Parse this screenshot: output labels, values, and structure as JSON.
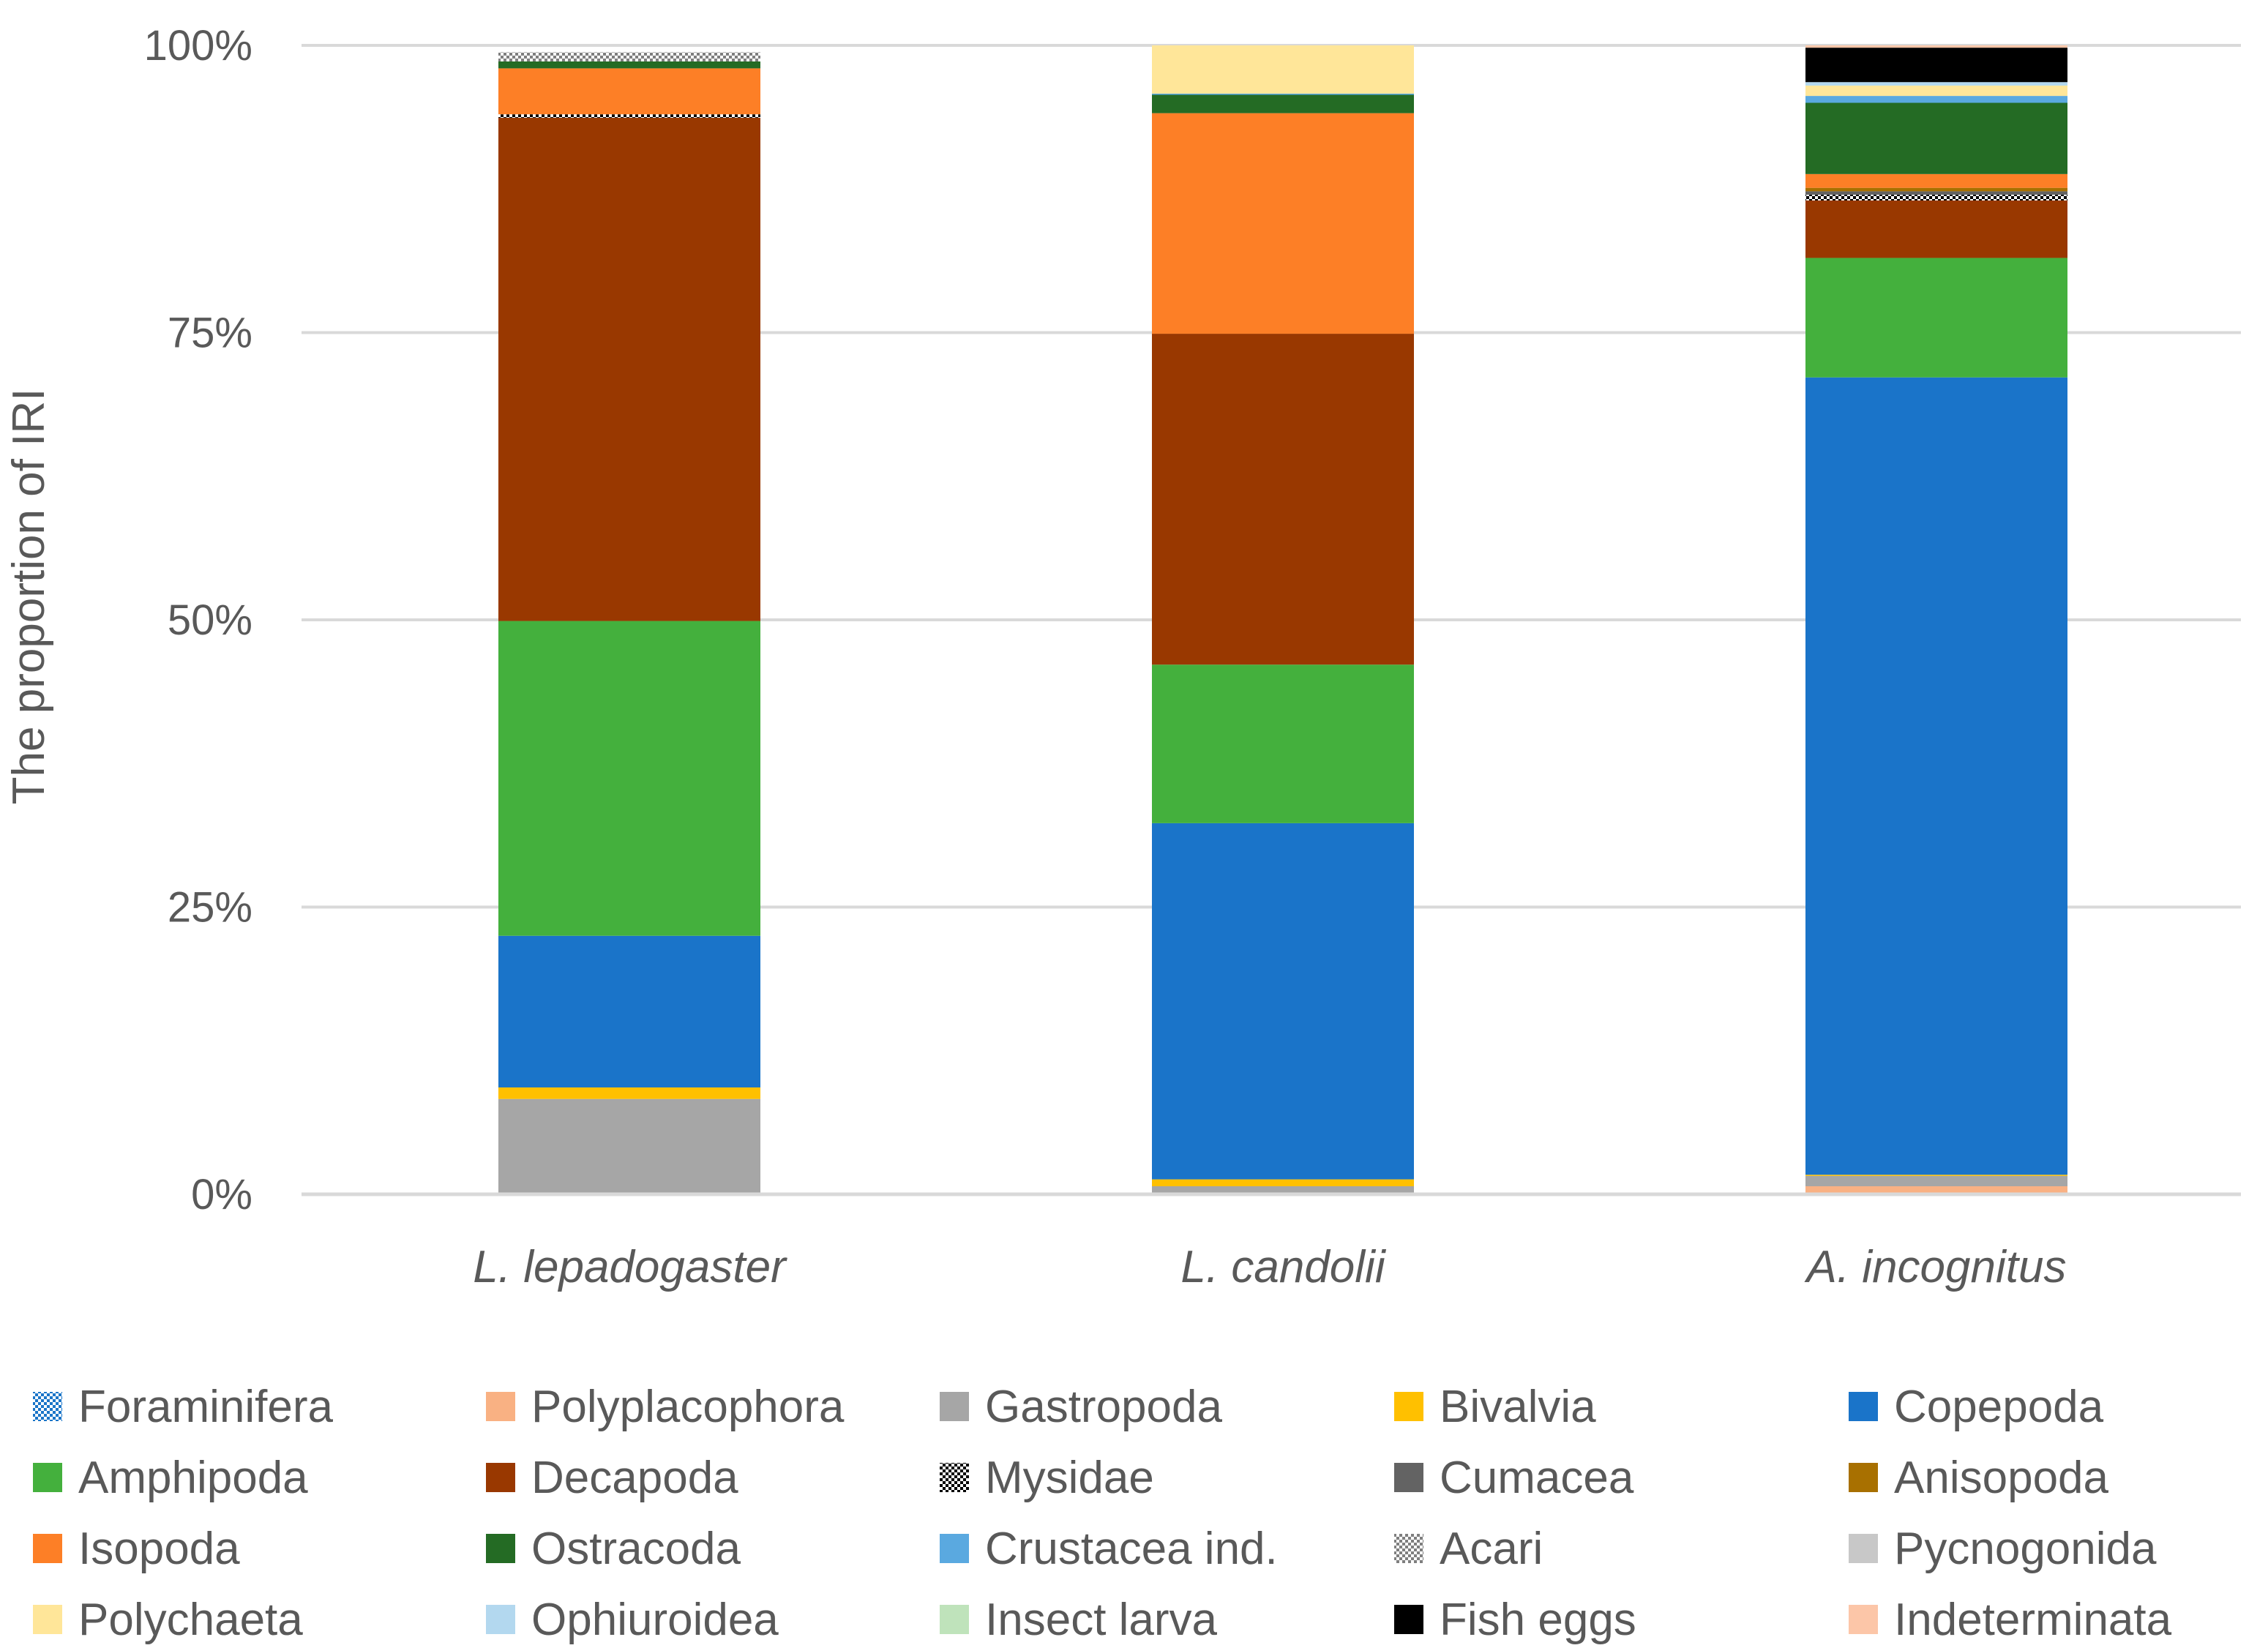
{
  "chart_data": {
    "type": "bar",
    "stacked": true,
    "percent": true,
    "title": "",
    "xlabel": "",
    "ylabel": "The proportion of IRI",
    "ylim": [
      0,
      100
    ],
    "yticks": [
      0,
      25,
      50,
      75,
      100
    ],
    "ytick_labels": [
      "0%",
      "25%",
      "50%",
      "75%",
      "100%"
    ],
    "grid": true,
    "legend_position": "bottom",
    "categories": [
      "L. lepadogaster",
      "L. candolii",
      "A. incognitus"
    ],
    "series": [
      {
        "name": "Foraminifera",
        "color": "#1b75c8",
        "pattern": "checker-blue",
        "values": [
          0.0,
          0.0,
          0.0
        ]
      },
      {
        "name": "Polyplacophora",
        "color": "#f9b183",
        "values": [
          0.0,
          0.0,
          0.7
        ]
      },
      {
        "name": "Gastropoda",
        "color": "#a6a6a6",
        "values": [
          8.3,
          0.7,
          0.9
        ]
      },
      {
        "name": "Bivalvia",
        "color": "#ffc000",
        "values": [
          1.0,
          0.6,
          0.1
        ]
      },
      {
        "name": "Copepoda",
        "color": "#1a74c9",
        "values": [
          13.2,
          31.0,
          69.4
        ]
      },
      {
        "name": "Amphipoda",
        "color": "#44b03d",
        "values": [
          27.4,
          13.8,
          10.4
        ]
      },
      {
        "name": "Decapoda",
        "color": "#993800",
        "values": [
          43.8,
          28.8,
          5.0
        ]
      },
      {
        "name": "Mysidae",
        "color": "#000000",
        "pattern": "checker-black",
        "values": [
          0.3,
          0.0,
          0.5
        ]
      },
      {
        "name": "Cumacea",
        "color": "#636363",
        "values": [
          0.0,
          0.0,
          0.3
        ]
      },
      {
        "name": "Anisopoda",
        "color": "#a87000",
        "values": [
          0.0,
          0.0,
          0.3
        ]
      },
      {
        "name": "Isopoda",
        "color": "#fd7f26",
        "values": [
          4.0,
          19.2,
          1.2
        ]
      },
      {
        "name": "Ostracoda",
        "color": "#246b24",
        "values": [
          0.6,
          1.6,
          6.2
        ]
      },
      {
        "name": "Crustacea ind.",
        "color": "#5aa9e0",
        "values": [
          0.0,
          0.1,
          0.6
        ]
      },
      {
        "name": "Acari",
        "color": "#7f7f7f",
        "pattern": "checker-gray",
        "values": [
          0.8,
          0.0,
          0.0
        ]
      },
      {
        "name": "Pycnogonida",
        "color": "#c8c8c8",
        "values": [
          0.0,
          0.0,
          0.0
        ]
      },
      {
        "name": "Polychaeta",
        "color": "#ffe699",
        "values": [
          0.0,
          4.2,
          0.9
        ]
      },
      {
        "name": "Ophiuroidea",
        "color": "#b3d8ef",
        "values": [
          0.0,
          0.0,
          0.3
        ]
      },
      {
        "name": "Insect larva",
        "color": "#bfe3bb",
        "values": [
          0.0,
          0.0,
          0.0
        ]
      },
      {
        "name": "Fish eggs",
        "color": "#000000",
        "values": [
          0.0,
          0.0,
          3.0
        ]
      },
      {
        "name": "Indeterminata",
        "color": "#fcc6a8",
        "values": [
          0.0,
          0.0,
          0.2
        ]
      }
    ]
  }
}
